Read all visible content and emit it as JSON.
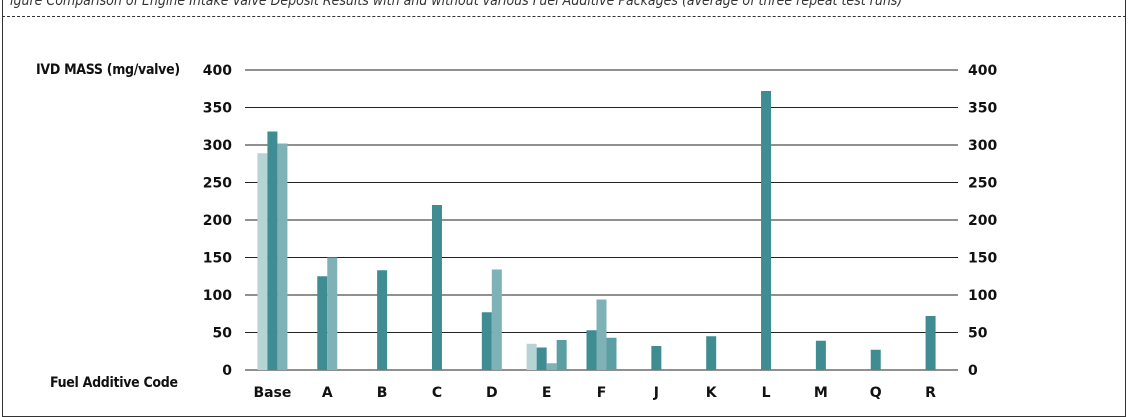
{
  "caption": "igure        Comparison of Engine Intake Valve Deposit Results with and without various Fuel Additive Packages (average of three repeat test runs)",
  "chart_data": {
    "type": "bar",
    "ylabel": "IVD MASS (mg/valve)",
    "xlabel": "Fuel Additive Code",
    "ylim": [
      0,
      400
    ],
    "yticks": [
      0,
      50,
      100,
      150,
      200,
      250,
      300,
      350,
      400
    ],
    "groups": [
      {
        "category": "Base",
        "bars": [
          {
            "value": 289,
            "color": "#b7d4d4"
          },
          {
            "value": 318,
            "color": "#3f8d93"
          },
          {
            "value": 302,
            "color": "#7fb2b6"
          }
        ]
      },
      {
        "category": "A",
        "bars": [
          {
            "value": 125,
            "color": "#3f8d93"
          },
          {
            "value": 150,
            "color": "#7fb2b6"
          }
        ]
      },
      {
        "category": "B",
        "bars": [
          {
            "value": 133,
            "color": "#3f8d93"
          }
        ]
      },
      {
        "category": "C",
        "bars": [
          {
            "value": 220,
            "color": "#3f8d93"
          }
        ]
      },
      {
        "category": "D",
        "bars": [
          {
            "value": 77,
            "color": "#3f8d93"
          },
          {
            "value": 134,
            "color": "#7fb2b6"
          }
        ]
      },
      {
        "category": "E",
        "bars": [
          {
            "value": 35,
            "color": "#b7d4d4"
          },
          {
            "value": 30,
            "color": "#3f8d93"
          },
          {
            "value": 9,
            "color": "#7fb2b6"
          },
          {
            "value": 40,
            "color": "#5b9fa3"
          }
        ]
      },
      {
        "category": "F",
        "bars": [
          {
            "value": 53,
            "color": "#3f8d93"
          },
          {
            "value": 94,
            "color": "#7fb2b6"
          },
          {
            "value": 43,
            "color": "#5b9fa3"
          }
        ]
      },
      {
        "category": "J",
        "bars": [
          {
            "value": 32,
            "color": "#3f8d93"
          }
        ]
      },
      {
        "category": "K",
        "bars": [
          {
            "value": 45,
            "color": "#3f8d93"
          }
        ]
      },
      {
        "category": "L",
        "bars": [
          {
            "value": 372,
            "color": "#3f8d93"
          }
        ]
      },
      {
        "category": "M",
        "bars": [
          {
            "value": 39,
            "color": "#3f8d93"
          }
        ]
      },
      {
        "category": "Q",
        "bars": [
          {
            "value": 27,
            "color": "#3f8d93"
          }
        ]
      },
      {
        "category": "R",
        "bars": [
          {
            "value": 72,
            "color": "#3f8d93"
          }
        ]
      }
    ],
    "grid": true,
    "right_axis": true,
    "legend": "none"
  }
}
